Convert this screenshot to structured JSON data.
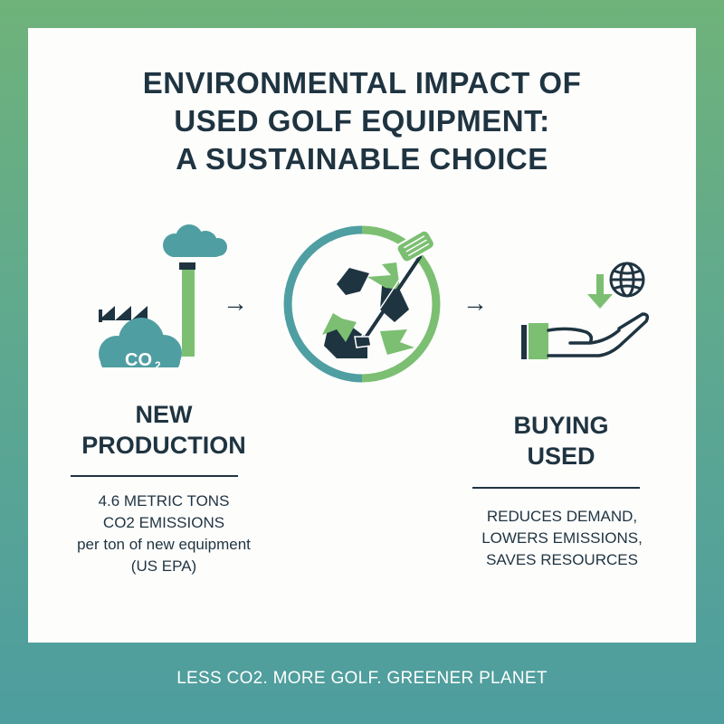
{
  "title_lines": [
    "ENVIRONMENTAL IMPACT OF",
    "USED GOLF EQUIPMENT:",
    "A SUSTAINABLE CHOICE"
  ],
  "left": {
    "icon": "factory-co2-icon",
    "co2_label": "CO",
    "co2_sub": "2",
    "heading_lines": [
      "NEW",
      "PRODUCTION"
    ],
    "desc_lines": [
      "4.6 METRIC TONS",
      "CO2 EMISSIONS",
      "per ton of new equipment",
      "(US EPA)"
    ]
  },
  "center": {
    "icon": "recycle-golf-club-icon"
  },
  "right": {
    "icon": "hand-globe-icon",
    "heading_lines": [
      "BUYING",
      "USED"
    ],
    "desc_lines": [
      "REDUCES DEMAND,",
      "LOWERS EMISSIONS,",
      "SAVES RESOURCES"
    ]
  },
  "arrows": [
    "→",
    "→"
  ],
  "footer": "LESS CO2. MORE GOLF. GREENER PLANET",
  "colors": {
    "navy": "#1f3441",
    "green": "#7cbf72",
    "teal": "#4f9ea2",
    "card": "#fdfdfc"
  }
}
